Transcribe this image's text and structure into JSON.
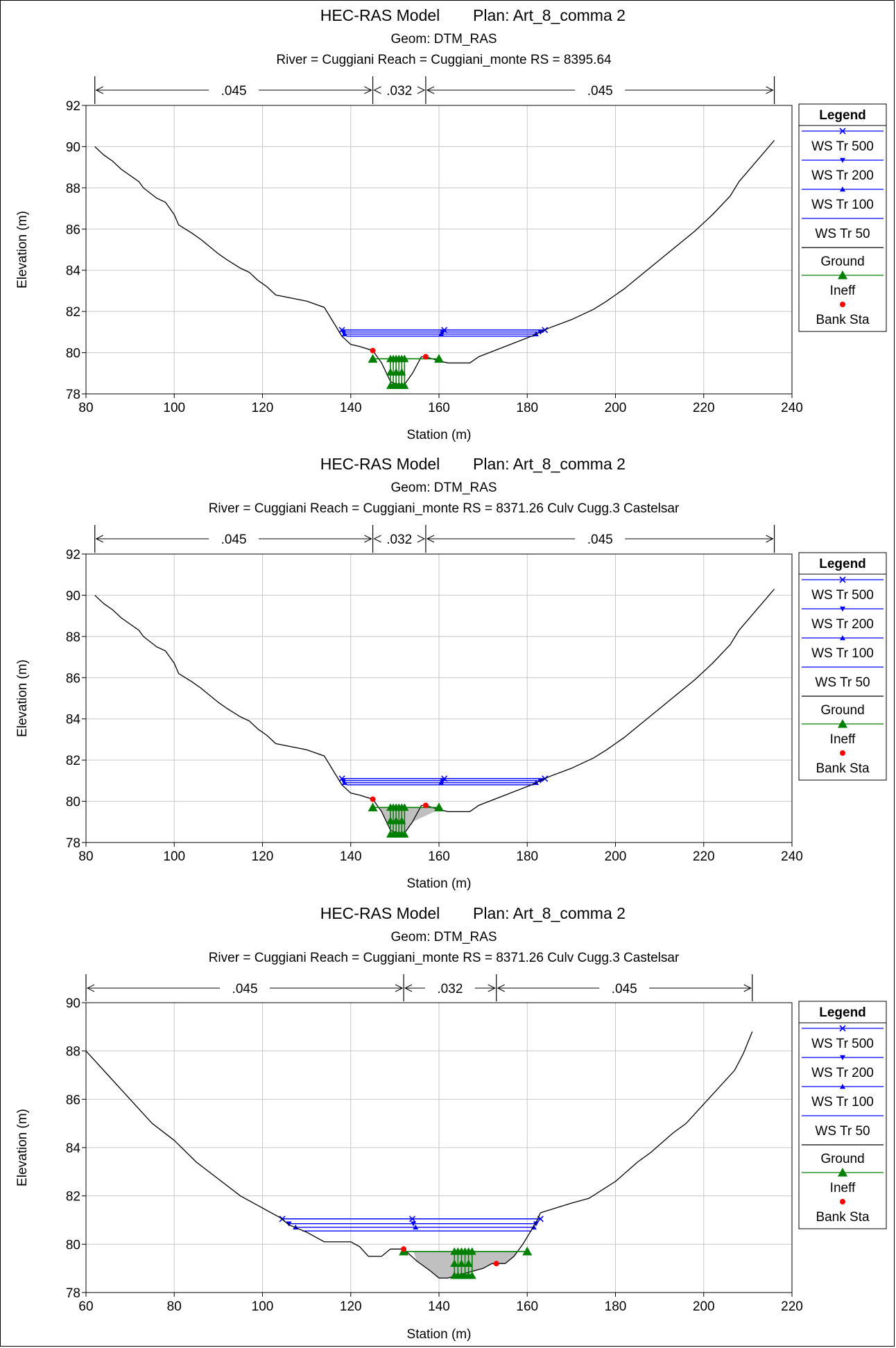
{
  "colors": {
    "ws": "#0000ff",
    "ground": "#000000",
    "ineff": "#008000",
    "bank": "#ff0000",
    "grid": "#c8c8c8",
    "ineff_fill": "#c0c0c0"
  },
  "chart_data": [
    {
      "type": "line",
      "title_left": "HEC-RAS Model",
      "title_right": "Plan: Art_8_comma 2",
      "geom": "Geom: DTM_RAS",
      "river_line": "River = Cuggiani   Reach = Cuggiani_monte      RS = 8395.64",
      "xlabel": "Station (m)",
      "ylabel": "Elevation (m)",
      "xlim": [
        80,
        240
      ],
      "ylim": [
        78,
        92
      ],
      "xticks": [
        "80",
        "100",
        "120",
        "140",
        "160",
        "180",
        "200",
        "220",
        "240"
      ],
      "yticks": [
        "78",
        "80",
        "82",
        "84",
        "86",
        "88",
        "90",
        "92"
      ],
      "grid": true,
      "legend_position": "right",
      "legend": {
        "title": "Legend",
        "items": [
          "WS Tr 500",
          "WS Tr 200",
          "WS Tr 100",
          "WS Tr 50",
          "Ground",
          "Ineff",
          "Bank Sta"
        ]
      },
      "manning": [
        {
          "label": ".045",
          "from": 82,
          "to": 145
        },
        {
          "label": ".032",
          "from": 145,
          "to": 157
        },
        {
          "label": ".045",
          "from": 157,
          "to": 236
        }
      ],
      "ground": [
        [
          82,
          90.0
        ],
        [
          84,
          89.6
        ],
        [
          86,
          89.3
        ],
        [
          88,
          88.9
        ],
        [
          92,
          88.3
        ],
        [
          93,
          88.0
        ],
        [
          96,
          87.5
        ],
        [
          98,
          87.3
        ],
        [
          100,
          86.7
        ],
        [
          101,
          86.2
        ],
        [
          104,
          85.8
        ],
        [
          106,
          85.5
        ],
        [
          110,
          84.8
        ],
        [
          112,
          84.5
        ],
        [
          115,
          84.1
        ],
        [
          117,
          83.9
        ],
        [
          119,
          83.5
        ],
        [
          121,
          83.2
        ],
        [
          123,
          82.8
        ],
        [
          130,
          82.5
        ],
        [
          134,
          82.2
        ],
        [
          136,
          81.5
        ],
        [
          138,
          80.8
        ],
        [
          140,
          80.4
        ],
        [
          142,
          80.3
        ],
        [
          145,
          80.1
        ],
        [
          147,
          79.5
        ],
        [
          149,
          78.6
        ],
        [
          150,
          78.5
        ],
        [
          152,
          78.4
        ],
        [
          154,
          79.0
        ],
        [
          156,
          79.8
        ],
        [
          157,
          79.8
        ],
        [
          160,
          79.6
        ],
        [
          162,
          79.5
        ],
        [
          165,
          79.5
        ],
        [
          167,
          79.5
        ],
        [
          169,
          79.8
        ],
        [
          175,
          80.3
        ],
        [
          181,
          80.8
        ],
        [
          185,
          81.2
        ],
        [
          190,
          81.6
        ],
        [
          195,
          82.1
        ],
        [
          198,
          82.5
        ],
        [
          202,
          83.1
        ],
        [
          206,
          83.8
        ],
        [
          210,
          84.5
        ],
        [
          214,
          85.2
        ],
        [
          218,
          85.9
        ],
        [
          222,
          86.7
        ],
        [
          226,
          87.6
        ],
        [
          228,
          88.3
        ],
        [
          232,
          89.3
        ],
        [
          236,
          90.3
        ]
      ],
      "water_surfaces": [
        {
          "name": "WS Tr 500",
          "elev": 81.1,
          "left": 138.0,
          "right": 184.0,
          "marker": "x"
        },
        {
          "name": "WS Tr 200",
          "elev": 81.0,
          "left": 138.3,
          "right": 183.0,
          "marker": "down"
        },
        {
          "name": "WS Tr 100",
          "elev": 80.9,
          "left": 138.6,
          "right": 182.0,
          "marker": "up"
        },
        {
          "name": "WS Tr 50",
          "elev": 80.8,
          "left": 139.0,
          "right": 181.5,
          "marker": "none"
        }
      ],
      "ineff": {
        "elev": 79.7,
        "left": 145,
        "right": 160,
        "fill": false
      },
      "ineff_block": {
        "x_from": 149.0,
        "x_to": 152.2,
        "top": 79.7,
        "bottom": 78.4
      },
      "bank_sta": [
        [
          145,
          80.1
        ],
        [
          157,
          79.8
        ]
      ]
    },
    {
      "type": "line",
      "title_left": "HEC-RAS Model",
      "title_right": "Plan: Art_8_comma 2",
      "geom": "Geom: DTM_RAS",
      "river_line": "River = Cuggiani   Reach = Cuggiani_monte      RS = 8371.26  Culv  Cugg.3 Castelsar",
      "xlabel": "Station (m)",
      "ylabel": "Elevation (m)",
      "xlim": [
        80,
        240
      ],
      "ylim": [
        78,
        92
      ],
      "xticks": [
        "80",
        "100",
        "120",
        "140",
        "160",
        "180",
        "200",
        "220",
        "240"
      ],
      "yticks": [
        "78",
        "80",
        "82",
        "84",
        "86",
        "88",
        "90",
        "92"
      ],
      "grid": true,
      "legend_position": "right",
      "legend": {
        "title": "Legend",
        "items": [
          "WS Tr 500",
          "WS Tr 200",
          "WS Tr 100",
          "WS Tr 50",
          "Ground",
          "Ineff",
          "Bank Sta"
        ]
      },
      "manning": [
        {
          "label": ".045",
          "from": 82,
          "to": 145
        },
        {
          "label": ".032",
          "from": 145,
          "to": 157
        },
        {
          "label": ".045",
          "from": 157,
          "to": 236
        }
      ],
      "ground": [
        [
          82,
          90.0
        ],
        [
          84,
          89.6
        ],
        [
          86,
          89.3
        ],
        [
          88,
          88.9
        ],
        [
          92,
          88.3
        ],
        [
          93,
          88.0
        ],
        [
          96,
          87.5
        ],
        [
          98,
          87.3
        ],
        [
          100,
          86.7
        ],
        [
          101,
          86.2
        ],
        [
          104,
          85.8
        ],
        [
          106,
          85.5
        ],
        [
          110,
          84.8
        ],
        [
          112,
          84.5
        ],
        [
          115,
          84.1
        ],
        [
          117,
          83.9
        ],
        [
          119,
          83.5
        ],
        [
          121,
          83.2
        ],
        [
          123,
          82.8
        ],
        [
          130,
          82.5
        ],
        [
          134,
          82.2
        ],
        [
          136,
          81.5
        ],
        [
          138,
          80.8
        ],
        [
          140,
          80.4
        ],
        [
          142,
          80.3
        ],
        [
          145,
          80.1
        ],
        [
          147,
          79.5
        ],
        [
          149,
          78.6
        ],
        [
          150,
          78.5
        ],
        [
          152,
          78.4
        ],
        [
          154,
          79.0
        ],
        [
          156,
          79.8
        ],
        [
          157,
          79.8
        ],
        [
          160,
          79.6
        ],
        [
          162,
          79.5
        ],
        [
          165,
          79.5
        ],
        [
          167,
          79.5
        ],
        [
          169,
          79.8
        ],
        [
          175,
          80.3
        ],
        [
          181,
          80.8
        ],
        [
          185,
          81.2
        ],
        [
          190,
          81.6
        ],
        [
          195,
          82.1
        ],
        [
          198,
          82.5
        ],
        [
          202,
          83.1
        ],
        [
          206,
          83.8
        ],
        [
          210,
          84.5
        ],
        [
          214,
          85.2
        ],
        [
          218,
          85.9
        ],
        [
          222,
          86.7
        ],
        [
          226,
          87.6
        ],
        [
          228,
          88.3
        ],
        [
          232,
          89.3
        ],
        [
          236,
          90.3
        ]
      ],
      "water_surfaces": [
        {
          "name": "WS Tr 500",
          "elev": 81.1,
          "left": 138.0,
          "right": 184.0,
          "marker": "x"
        },
        {
          "name": "WS Tr 200",
          "elev": 81.0,
          "left": 138.3,
          "right": 183.0,
          "marker": "down"
        },
        {
          "name": "WS Tr 100",
          "elev": 80.9,
          "left": 138.6,
          "right": 182.0,
          "marker": "up"
        },
        {
          "name": "WS Tr 50",
          "elev": 80.8,
          "left": 139.0,
          "right": 181.5,
          "marker": "none"
        }
      ],
      "ineff": {
        "elev": 79.7,
        "left": 145,
        "right": 160,
        "fill": true
      },
      "ineff_block": {
        "x_from": 149.0,
        "x_to": 152.2,
        "top": 79.7,
        "bottom": 78.4
      },
      "bank_sta": [
        [
          145,
          80.1
        ],
        [
          157,
          79.8
        ]
      ]
    },
    {
      "type": "line",
      "title_left": "HEC-RAS Model",
      "title_right": "Plan: Art_8_comma 2",
      "geom": "Geom: DTM_RAS",
      "river_line": "River = Cuggiani   Reach = Cuggiani_monte      RS = 8371.26  Culv  Cugg.3 Castelsar",
      "xlabel": "Station (m)",
      "ylabel": "Elevation (m)",
      "xlim": [
        60,
        220
      ],
      "ylim": [
        78,
        90
      ],
      "xticks": [
        "60",
        "80",
        "100",
        "120",
        "140",
        "160",
        "180",
        "200",
        "220"
      ],
      "yticks": [
        "78",
        "80",
        "82",
        "84",
        "86",
        "88",
        "90"
      ],
      "grid": true,
      "legend_position": "right",
      "legend": {
        "title": "Legend",
        "items": [
          "WS Tr 500",
          "WS Tr 200",
          "WS Tr 100",
          "WS Tr 50",
          "Ground",
          "Ineff",
          "Bank Sta"
        ]
      },
      "manning": [
        {
          "label": ".045",
          "from": 60,
          "to": 132
        },
        {
          "label": ".032",
          "from": 132,
          "to": 153
        },
        {
          "label": ".045",
          "from": 153,
          "to": 211
        }
      ],
      "ground": [
        [
          60,
          88.0
        ],
        [
          62,
          87.6
        ],
        [
          65,
          87.0
        ],
        [
          68,
          86.4
        ],
        [
          72,
          85.6
        ],
        [
          75,
          85.0
        ],
        [
          80,
          84.3
        ],
        [
          85,
          83.4
        ],
        [
          90,
          82.7
        ],
        [
          95,
          82.0
        ],
        [
          100,
          81.5
        ],
        [
          104,
          81.1
        ],
        [
          106,
          80.8
        ],
        [
          110,
          80.5
        ],
        [
          114,
          80.1
        ],
        [
          120,
          80.1
        ],
        [
          122,
          79.9
        ],
        [
          124,
          79.5
        ],
        [
          127,
          79.5
        ],
        [
          129,
          79.8
        ],
        [
          132,
          79.8
        ],
        [
          135,
          79.3
        ],
        [
          138,
          78.9
        ],
        [
          140,
          78.6
        ],
        [
          142,
          78.6
        ],
        [
          144,
          78.7
        ],
        [
          146,
          78.8
        ],
        [
          148,
          78.9
        ],
        [
          150,
          79.0
        ],
        [
          152,
          79.2
        ],
        [
          155,
          79.2
        ],
        [
          157,
          79.5
        ],
        [
          159,
          80.0
        ],
        [
          161,
          80.6
        ],
        [
          162,
          80.9
        ],
        [
          163,
          81.3
        ],
        [
          170,
          81.7
        ],
        [
          174,
          81.9
        ],
        [
          180,
          82.6
        ],
        [
          185,
          83.4
        ],
        [
          188,
          83.8
        ],
        [
          193,
          84.6
        ],
        [
          196,
          85.0
        ],
        [
          200,
          85.8
        ],
        [
          203,
          86.4
        ],
        [
          207,
          87.2
        ],
        [
          209,
          87.9
        ],
        [
          211,
          88.8
        ]
      ],
      "water_surfaces": [
        {
          "name": "WS Tr 500",
          "elev": 81.05,
          "left": 104.5,
          "right": 163.0,
          "marker": "x"
        },
        {
          "name": "WS Tr 200",
          "elev": 80.85,
          "left": 106.0,
          "right": 162.0,
          "marker": "down"
        },
        {
          "name": "WS Tr 100",
          "elev": 80.7,
          "left": 107.5,
          "right": 161.5,
          "marker": "up"
        },
        {
          "name": "WS Tr 50",
          "elev": 80.55,
          "left": 109.0,
          "right": 161.0,
          "marker": "none"
        }
      ],
      "ineff": {
        "elev": 79.7,
        "left": 132,
        "right": 160,
        "fill": true
      },
      "ineff_block": {
        "x_from": 143.5,
        "x_to": 147.5,
        "top": 79.7,
        "bottom": 78.7
      },
      "bank_sta": [
        [
          132,
          79.8
        ],
        [
          153,
          79.2
        ]
      ]
    }
  ]
}
